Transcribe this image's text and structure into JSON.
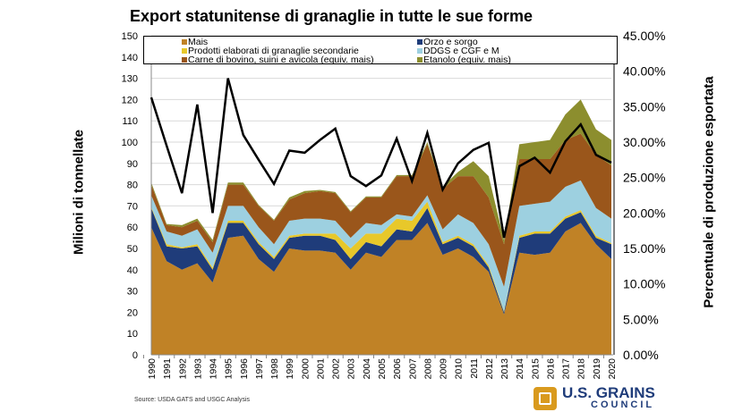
{
  "chart_data": {
    "type": "area",
    "stacked": true,
    "title": "Export statunitense di granaglie in tutte le sue forme",
    "ylabel": "Milioni di tonnellate",
    "y2label": "Percentuale di produzione esportata",
    "ylim": [
      0,
      150
    ],
    "y2lim": [
      0,
      45
    ],
    "yticks": [
      "0",
      "10",
      "20",
      "30",
      "40",
      "50",
      "60",
      "70",
      "80",
      "90",
      "100",
      "110",
      "120",
      "130",
      "140",
      "150"
    ],
    "y2ticks": [
      "0.00%",
      "5.00%",
      "10.00%",
      "15.00%",
      "20.00%",
      "25.00%",
      "30.00%",
      "35.00%",
      "40.00%",
      "45.00%"
    ],
    "grid": true,
    "legend_position": "top",
    "categories": [
      "1990",
      "1991",
      "1992",
      "1993",
      "1994",
      "1995",
      "1996",
      "1997",
      "1998",
      "1999",
      "2000",
      "2001",
      "2002",
      "2003",
      "2004",
      "2005",
      "2006",
      "2007",
      "2008",
      "2009",
      "2010",
      "2011",
      "2012",
      "2013",
      "2014",
      "2015",
      "2016",
      "2017",
      "2018",
      "2019",
      "2020"
    ],
    "series": [
      {
        "name": "Mais",
        "color": "#C08226",
        "values": [
          60,
          44,
          40,
          43,
          34,
          55,
          56,
          45,
          39,
          50,
          49,
          49,
          48,
          40,
          48,
          46,
          54,
          54,
          62,
          47,
          50,
          46,
          39,
          19,
          48,
          47,
          48,
          58,
          62,
          52,
          45
        ]
      },
      {
        "name": "Orzo e sorgo",
        "color": "#1F3C7A",
        "values": [
          9,
          7,
          10,
          8,
          6,
          7,
          6,
          7,
          6,
          5,
          7,
          7,
          6,
          5,
          5,
          5,
          5,
          4,
          7,
          5,
          5,
          5,
          2,
          1,
          7,
          10,
          9,
          6,
          5,
          3,
          7
        ]
      },
      {
        "name": "Prodotti elaborati di granaglie secondarie",
        "color": "#E8C82A",
        "values": [
          0.5,
          1,
          0.5,
          1,
          1,
          1,
          1,
          1,
          1,
          1,
          1,
          1,
          3,
          5,
          4,
          6,
          5,
          5,
          3,
          1,
          1,
          1,
          1,
          0.5,
          1,
          1,
          1,
          1,
          1,
          1,
          0.5
        ]
      },
      {
        "name": "DDGS e CGF e M",
        "color": "#9DD0E0",
        "values": [
          5.5,
          6,
          5.5,
          7,
          7,
          7,
          7,
          7,
          6,
          7,
          7,
          7,
          6,
          5,
          5,
          4,
          2,
          2,
          3,
          6,
          10,
          10,
          10,
          11.5,
          14,
          13,
          14,
          14,
          14,
          13,
          11.5
        ]
      },
      {
        "name": "Carne di bovino, suini e avicola (equiv. mais)",
        "color": "#9A561B",
        "values": [
          5,
          3,
          4,
          4,
          5,
          10,
          10,
          10,
          11,
          10,
          12,
          13,
          13,
          12,
          12,
          13,
          18,
          19,
          24,
          19,
          18,
          22,
          22,
          20,
          22,
          21,
          20,
          22,
          22,
          25,
          25
        ]
      },
      {
        "name": "Etanolo (equiv. mais)",
        "color": "#8C8E2E",
        "values": [
          1,
          0.5,
          1,
          1,
          1,
          1,
          1,
          0.5,
          0.5,
          1,
          1,
          0.5,
          0.5,
          0.5,
          0.5,
          0.5,
          0.5,
          0.5,
          1,
          1,
          2,
          7,
          10,
          2,
          7,
          8,
          9,
          12,
          16,
          12,
          12
        ]
      }
    ],
    "line": {
      "axis": "right",
      "color": "#000000",
      "values": [
        36.3,
        29.5,
        22.8,
        35.3,
        20.0,
        39.0,
        31.0,
        27.5,
        24.1,
        28.8,
        28.5,
        30.3,
        31.9,
        25.2,
        23.8,
        25.3,
        30.5,
        24.5,
        31.3,
        23.3,
        27.0,
        28.9,
        29.9,
        16.5,
        26.6,
        27.8,
        25.7,
        30.1,
        32.5,
        28.2,
        27.1
      ]
    }
  },
  "source": "Source: USDA GATS and USGC Analysis",
  "logo": {
    "line1": "U.S. GRAINS",
    "line2": "COUNCIL"
  }
}
